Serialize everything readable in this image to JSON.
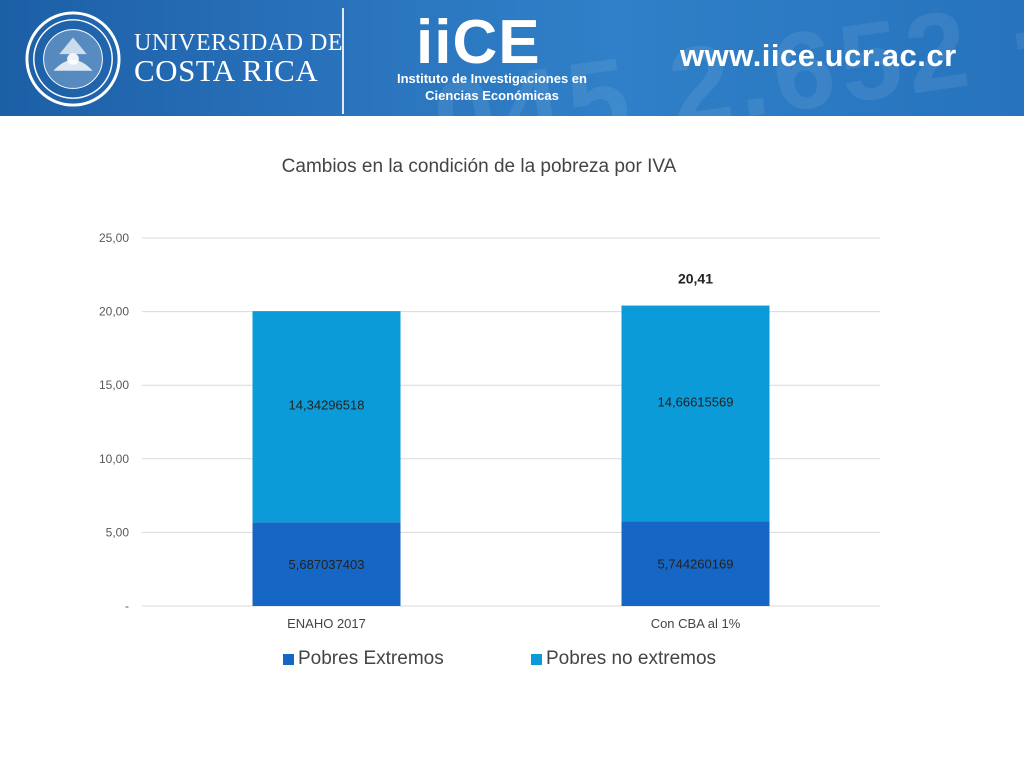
{
  "header": {
    "university_line1": "UNIVERSIDAD DE",
    "university_line2": "COSTA RICA",
    "logo_text": "iiCE",
    "institute_line1": "Instituto de Investigaciones en",
    "institute_line2": "Ciencias Económicas",
    "website": "www.iice.ucr.ac.cr",
    "watermark": "045 2.652 · 1.249"
  },
  "colors": {
    "banner": "#2a74bd",
    "pobres_extremos": "#1667c5",
    "pobres_no_extremos": "#0b9bd8",
    "grid": "#d9d9d9",
    "text": "#444444"
  },
  "chart_data": {
    "type": "bar",
    "stacked": true,
    "title": "Cambios en la condición de la pobreza por IVA",
    "categories": [
      "ENAHO 2017",
      "Con CBA al 1%"
    ],
    "series": [
      {
        "name": "Pobres Extremos",
        "values": [
          5.687037403,
          5.744260169
        ],
        "labels": [
          "5,687037403",
          "5,744260169"
        ]
      },
      {
        "name": "Pobres no extremos",
        "values": [
          14.34296518,
          14.66615569
        ],
        "labels": [
          "14,34296518",
          "14,66615569"
        ]
      }
    ],
    "total_labels": [
      "",
      "20,41"
    ],
    "y_ticks": [
      "-",
      "5,00",
      "10,00",
      "15,00",
      "20,00",
      "25,00"
    ],
    "ylim": [
      0,
      25
    ],
    "grid": true,
    "legend": "bottom"
  }
}
